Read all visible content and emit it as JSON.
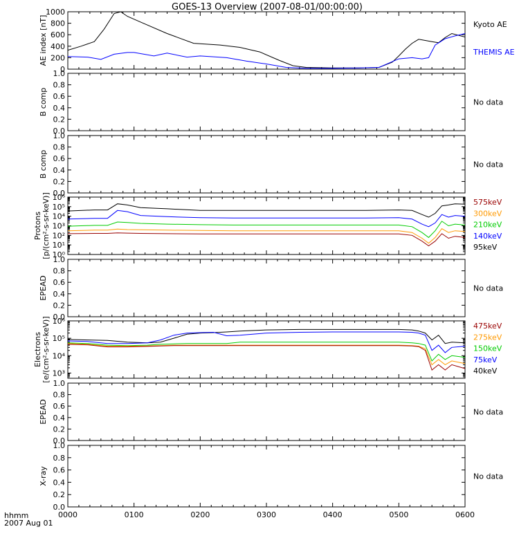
{
  "title": "GOES-13 Overview (2007-08-01/00:00:00)",
  "x_axis": {
    "caption_line1": "hhmm",
    "caption_line2": "2007 Aug 01",
    "ticks": [
      "0000",
      "0100",
      "0200",
      "0300",
      "0400",
      "0500",
      "0600"
    ]
  },
  "colors": {
    "black": "#000000",
    "blue": "#0000ff",
    "green": "#00cc00",
    "orange": "#ff9900",
    "darkred": "#990000"
  },
  "chart_data": [
    {
      "id": "ae",
      "type": "line",
      "ylabel": "AE index [nT]",
      "ylim": [
        0,
        1000
      ],
      "ytick_labels": [
        "0",
        "200",
        "400",
        "600",
        "800",
        "1000"
      ],
      "ytick_values": [
        0,
        200,
        400,
        600,
        800,
        1000
      ],
      "x_unit": "hours after 2007-08-01 00:00",
      "series": [
        {
          "name": "Kyoto AE",
          "color": "#000000",
          "x": [
            0,
            0.2,
            0.4,
            0.55,
            0.7,
            0.8,
            0.9,
            1.1,
            1.5,
            1.9,
            2.3,
            2.6,
            2.9,
            3.2,
            3.4,
            3.6,
            4.0,
            4.4,
            4.7,
            4.9,
            5.0,
            5.1,
            5.2,
            5.3,
            5.4,
            5.5,
            5.6,
            5.7,
            5.8,
            5.9,
            6.0
          ],
          "y": [
            330,
            400,
            480,
            700,
            970,
            1000,
            920,
            820,
            620,
            450,
            420,
            380,
            300,
            150,
            60,
            30,
            20,
            20,
            30,
            120,
            230,
            350,
            450,
            520,
            500,
            480,
            460,
            550,
            620,
            590,
            560
          ]
        },
        {
          "name": "THEMIS AE",
          "color": "#0000ff",
          "x": [
            0,
            0.3,
            0.5,
            0.7,
            0.9,
            1.0,
            1.3,
            1.5,
            1.8,
            2.0,
            2.4,
            2.7,
            3.0,
            3.3,
            3.6,
            4.0,
            4.4,
            4.7,
            4.9,
            5.0,
            5.2,
            5.35,
            5.45,
            5.55,
            5.7,
            5.85,
            6.0
          ],
          "y": [
            220,
            210,
            170,
            260,
            290,
            290,
            230,
            280,
            210,
            230,
            200,
            140,
            90,
            30,
            15,
            15,
            20,
            30,
            130,
            180,
            200,
            180,
            200,
            420,
            530,
            580,
            620
          ]
        }
      ],
      "legend": [
        "Kyoto AE",
        "THEMIS AE"
      ],
      "status": ""
    },
    {
      "id": "bcomp1",
      "type": "line",
      "ylabel": "B comp",
      "ylim": [
        0,
        1
      ],
      "ytick_labels": [
        "0.0",
        "0.2",
        "0.4",
        "0.6",
        "0.8",
        "1.0"
      ],
      "ytick_values": [
        0,
        0.2,
        0.4,
        0.6,
        0.8,
        1.0
      ],
      "series": [],
      "legend": [],
      "status": "No data"
    },
    {
      "id": "bcomp2",
      "type": "line",
      "ylabel": "B comp",
      "ylim": [
        0,
        1
      ],
      "ytick_labels": [
        "0.0",
        "0.2",
        "0.4",
        "0.6",
        "0.8",
        "1.0"
      ],
      "ytick_values": [
        0,
        0.2,
        0.4,
        0.6,
        0.8,
        1.0
      ],
      "series": [],
      "legend": [],
      "status": "No data"
    },
    {
      "id": "protons",
      "type": "line",
      "ylabel": "Protons",
      "ylabel_line2": "[p/(cm²-s-sr-keV)]",
      "log_scale": true,
      "ylim": [
        1,
        1000000
      ],
      "ytick_labels": [
        "10⁰",
        "10¹",
        "10²",
        "10³",
        "10⁴",
        "10⁵",
        "10⁶"
      ],
      "ytick_values": [
        1,
        10,
        100,
        1000,
        10000,
        100000,
        1000000
      ],
      "series": [
        {
          "name": "95keV",
          "color": "#000000",
          "x": [
            0,
            0.4,
            0.6,
            0.75,
            0.9,
            1.1,
            1.5,
            2.0,
            2.5,
            3.0,
            3.5,
            4.0,
            4.5,
            5.0,
            5.2,
            5.35,
            5.45,
            5.55,
            5.65,
            5.75,
            5.85,
            6.0
          ],
          "y": [
            35000,
            45000,
            45000,
            200000,
            150000,
            80000,
            60000,
            40000,
            40000,
            40000,
            40000,
            40000,
            40000,
            45000,
            40000,
            15000,
            8000,
            20000,
            120000,
            150000,
            200000,
            180000
          ]
        },
        {
          "name": "140keV",
          "color": "#0000ff",
          "x": [
            0,
            0.4,
            0.6,
            0.75,
            0.9,
            1.1,
            1.5,
            2.0,
            2.5,
            3.0,
            3.5,
            4.0,
            4.5,
            5.0,
            5.2,
            5.35,
            5.45,
            5.55,
            5.65,
            5.75,
            5.85,
            6.0
          ],
          "y": [
            5000,
            6000,
            6000,
            40000,
            30000,
            12000,
            9000,
            7000,
            6500,
            6500,
            6500,
            6500,
            6500,
            7000,
            5000,
            1500,
            800,
            2000,
            15000,
            8000,
            12000,
            10000
          ]
        },
        {
          "name": "210keV",
          "color": "#00cc00",
          "x": [
            0,
            0.4,
            0.6,
            0.75,
            0.9,
            1.1,
            1.5,
            2.0,
            2.5,
            3.0,
            3.5,
            4.0,
            4.5,
            5.0,
            5.2,
            5.35,
            5.45,
            5.55,
            5.65,
            5.75,
            5.85,
            6.0
          ],
          "y": [
            900,
            1100,
            1100,
            2500,
            2200,
            1800,
            1500,
            1300,
            1200,
            1200,
            1200,
            1200,
            1200,
            1200,
            800,
            200,
            60,
            300,
            3000,
            1000,
            1500,
            1200
          ]
        },
        {
          "name": "300keV",
          "color": "#ff9900",
          "x": [
            0,
            0.4,
            0.6,
            0.75,
            0.9,
            1.1,
            1.5,
            2.0,
            2.5,
            3.0,
            3.5,
            4.0,
            4.5,
            5.0,
            5.2,
            5.35,
            5.45,
            5.55,
            5.65,
            5.75,
            5.85,
            6.0
          ],
          "y": [
            300,
            350,
            350,
            450,
            400,
            380,
            350,
            320,
            300,
            300,
            300,
            300,
            300,
            300,
            200,
            50,
            15,
            60,
            500,
            200,
            300,
            250
          ]
        },
        {
          "name": "575keV",
          "color": "#990000",
          "x": [
            0,
            0.4,
            0.6,
            0.75,
            0.9,
            1.1,
            1.5,
            2.0,
            2.5,
            3.0,
            3.5,
            4.0,
            4.5,
            5.0,
            5.2,
            5.35,
            5.45,
            5.55,
            5.65,
            5.75,
            5.85,
            6.0
          ],
          "y": [
            150,
            160,
            160,
            180,
            170,
            160,
            150,
            140,
            140,
            140,
            140,
            140,
            140,
            140,
            100,
            25,
            8,
            25,
            150,
            50,
            80,
            60
          ]
        }
      ],
      "legend": [
        "575keV",
        "300keV",
        "210keV",
        "140keV",
        "95keV"
      ],
      "legend_colors": [
        "#990000",
        "#ff9900",
        "#00cc00",
        "#0000ff",
        "#000000"
      ],
      "status": ""
    },
    {
      "id": "epead1",
      "type": "line",
      "ylabel": "EPEAD",
      "ylim": [
        0,
        1
      ],
      "ytick_labels": [
        "0.0",
        "0.2",
        "0.4",
        "0.6",
        "0.8",
        "1.0"
      ],
      "ytick_values": [
        0,
        0.2,
        0.4,
        0.6,
        0.8,
        1.0
      ],
      "series": [],
      "legend": [],
      "status": "No data"
    },
    {
      "id": "electrons",
      "type": "line",
      "ylabel": "Electrons",
      "ylabel_line2": "[e/(cm²-s-sr-keV)]",
      "log_scale": true,
      "ylim": [
        500,
        1000000
      ],
      "ytick_labels": [
        "10³",
        "10⁴",
        "10⁵",
        "10⁶"
      ],
      "ytick_values": [
        1000,
        10000,
        100000,
        1000000
      ],
      "series": [
        {
          "name": "40keV",
          "color": "#000000",
          "x": [
            0,
            0.3,
            0.6,
            0.9,
            1.2,
            1.4,
            1.6,
            1.8,
            2.0,
            2.2,
            2.4,
            2.6,
            3.0,
            3.5,
            4.0,
            4.5,
            5.0,
            5.2,
            5.3,
            5.4,
            5.5,
            5.6,
            5.7,
            5.8,
            6.0
          ],
          "y": [
            85000,
            80000,
            75000,
            60000,
            55000,
            60000,
            100000,
            170000,
            200000,
            210000,
            230000,
            260000,
            300000,
            320000,
            320000,
            320000,
            320000,
            300000,
            260000,
            200000,
            80000,
            150000,
            50000,
            60000,
            55000
          ]
        },
        {
          "name": "75keV",
          "color": "#0000ff",
          "x": [
            0,
            0.3,
            0.6,
            0.9,
            1.2,
            1.4,
            1.6,
            1.8,
            2.0,
            2.2,
            2.4,
            2.6,
            3.0,
            3.5,
            4.0,
            4.5,
            5.0,
            5.2,
            5.3,
            5.4,
            5.5,
            5.6,
            5.7,
            5.8,
            6.0
          ],
          "y": [
            70000,
            65000,
            50000,
            50000,
            55000,
            80000,
            150000,
            200000,
            210000,
            220000,
            140000,
            150000,
            200000,
            220000,
            230000,
            230000,
            230000,
            220000,
            200000,
            150000,
            20000,
            40000,
            15000,
            30000,
            35000
          ]
        },
        {
          "name": "150keV",
          "color": "#00cc00",
          "x": [
            0,
            0.3,
            0.6,
            0.9,
            1.2,
            1.4,
            1.6,
            1.8,
            2.0,
            2.2,
            2.4,
            2.6,
            3.0,
            3.5,
            4.0,
            4.5,
            5.0,
            5.2,
            5.3,
            5.4,
            5.5,
            5.6,
            5.7,
            5.8,
            6.0
          ],
          "y": [
            55000,
            50000,
            40000,
            38000,
            40000,
            45000,
            48000,
            50000,
            50000,
            50000,
            50000,
            60000,
            60000,
            60000,
            60000,
            60000,
            60000,
            55000,
            50000,
            40000,
            5000,
            12000,
            6000,
            10000,
            8000
          ]
        },
        {
          "name": "275keV",
          "color": "#ff9900",
          "x": [
            0,
            0.3,
            0.6,
            0.9,
            1.2,
            1.4,
            1.6,
            1.8,
            2.0,
            2.2,
            2.4,
            2.6,
            3.0,
            3.5,
            4.0,
            4.5,
            5.0,
            5.2,
            5.3,
            5.4,
            5.5,
            5.6,
            5.7,
            5.8,
            6.0
          ],
          "y": [
            50000,
            45000,
            35000,
            35000,
            36000,
            38000,
            40000,
            40000,
            40000,
            40000,
            40000,
            40000,
            40000,
            40000,
            40000,
            40000,
            40000,
            38000,
            35000,
            25000,
            3000,
            6000,
            3000,
            5000,
            3500
          ]
        },
        {
          "name": "475keV",
          "color": "#990000",
          "x": [
            0,
            0.3,
            0.6,
            0.9,
            1.2,
            1.4,
            1.6,
            1.8,
            2.0,
            2.2,
            2.4,
            2.6,
            3.0,
            3.5,
            4.0,
            4.5,
            5.0,
            5.2,
            5.3,
            5.4,
            5.5,
            5.6,
            5.7,
            5.8,
            6.0
          ],
          "y": [
            45000,
            42000,
            32000,
            32000,
            34000,
            36000,
            38000,
            38000,
            38000,
            38000,
            38000,
            38000,
            38000,
            38000,
            38000,
            38000,
            38000,
            36000,
            33000,
            20000,
            1500,
            3000,
            1500,
            3000,
            1800
          ]
        }
      ],
      "legend": [
        "475keV",
        "275keV",
        "150keV",
        "75keV",
        "40keV"
      ],
      "legend_colors": [
        "#990000",
        "#ff9900",
        "#00cc00",
        "#0000ff",
        "#000000"
      ],
      "status": ""
    },
    {
      "id": "epead2",
      "type": "line",
      "ylabel": "EPEAD",
      "ylim": [
        0,
        1
      ],
      "ytick_labels": [
        "0.0",
        "0.2",
        "0.4",
        "0.6",
        "0.8",
        "1.0"
      ],
      "ytick_values": [
        0,
        0.2,
        0.4,
        0.6,
        0.8,
        1.0
      ],
      "series": [],
      "legend": [],
      "status": "No data"
    },
    {
      "id": "xray",
      "type": "line",
      "ylabel": "X-ray",
      "ylim": [
        0,
        1
      ],
      "ytick_labels": [
        "0.0",
        "0.2",
        "0.4",
        "0.6",
        "0.8",
        "1.0"
      ],
      "ytick_values": [
        0,
        0.2,
        0.4,
        0.6,
        0.8,
        1.0
      ],
      "series": [],
      "legend": [],
      "status": "No data"
    }
  ]
}
